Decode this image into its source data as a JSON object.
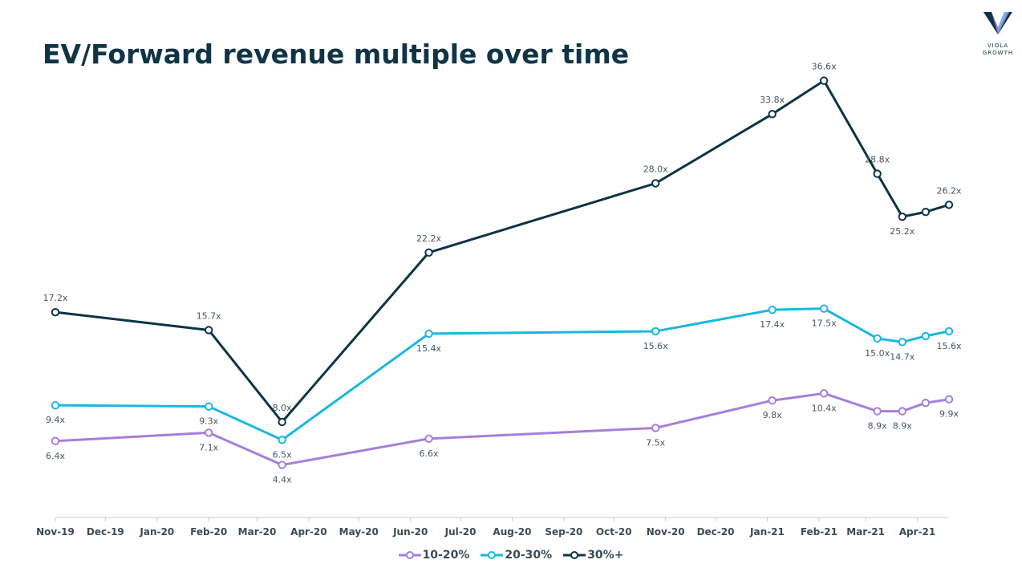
{
  "header": {
    "title": "EV/Forward revenue multiple over time"
  },
  "logo": {
    "line1": "VIOLA",
    "line2": "GROWTH",
    "icon": "viola-v-logo-icon"
  },
  "chart_data": {
    "type": "line",
    "title": "EV/Forward revenue multiple over time",
    "xlabel": "",
    "ylabel": "",
    "ylim": [
      0,
      40
    ],
    "x_tick_labels": [
      "Nov-19",
      "Dec-19",
      "Jan-20",
      "Feb-20",
      "Mar-20",
      "Apr-20",
      "May-20",
      "Jun-20",
      "Jul-20",
      "Aug-20",
      "Sep-20",
      "Oct-20",
      "Nov-20",
      "Dec-20",
      "Jan-21",
      "Feb-21",
      "Mar-21",
      "Apr-21"
    ],
    "legend_position": "bottom",
    "grid": false,
    "x": [
      "2019-11-01",
      "2020-02-01",
      "2020-03-16",
      "2020-06-12",
      "2020-10-26",
      "2021-01-04",
      "2021-02-04",
      "2021-03-08",
      "2021-03-23",
      "2021-04-06",
      "2021-04-20"
    ],
    "series": [
      {
        "name": "10-20%",
        "color": "#a67fdc",
        "values": [
          6.4,
          7.1,
          4.4,
          6.6,
          7.5,
          9.8,
          10.4,
          8.9,
          8.9,
          9.6,
          9.9
        ],
        "labels": [
          "6.4x",
          "7.1x",
          "4.4x",
          "6.6x",
          "7.5x",
          "9.8x",
          "10.4x",
          "8.9x",
          "8.9x",
          "",
          "9.9x"
        ]
      },
      {
        "name": "20-30%",
        "color": "#18b8de",
        "values": [
          9.4,
          9.3,
          6.5,
          15.4,
          15.6,
          17.4,
          17.5,
          15.0,
          14.7,
          15.2,
          15.6
        ],
        "labels": [
          "9.4x",
          "9.3x",
          "6.5x",
          "15.4x",
          "15.6x",
          "17.4x",
          "17.5x",
          "15.0x",
          "14.7x",
          "",
          "15.6x"
        ]
      },
      {
        "name": "30%+",
        "color": "#0c3444",
        "values": [
          17.2,
          15.7,
          8.0,
          22.2,
          28.0,
          33.8,
          36.6,
          28.8,
          25.2,
          25.6,
          26.2
        ],
        "labels": [
          "17.2x",
          "15.7x",
          "8.0x",
          "22.2x",
          "28.0x",
          "33.8x",
          "36.6x",
          "28.8x",
          "25.2x",
          "",
          "26.2x"
        ]
      }
    ]
  }
}
